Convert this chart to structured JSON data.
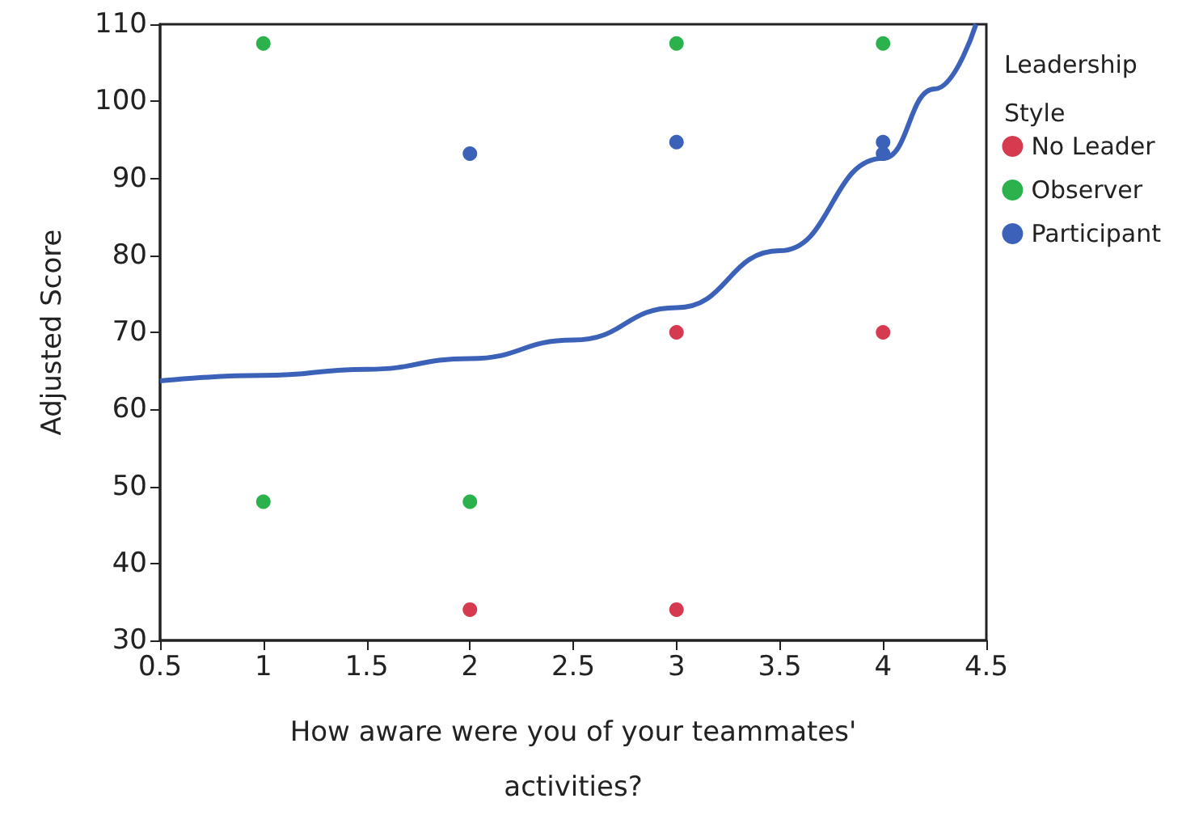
{
  "chart_data": {
    "type": "scatter",
    "xlabel": "How aware were you of your teammates' activities?",
    "ylabel": "Adjusted Score",
    "legend_title": "Leadership Style",
    "series": [
      {
        "name": "No Leader",
        "color": "#d63a4f",
        "x": [
          2,
          3,
          3,
          4
        ],
        "values": [
          34,
          34,
          70,
          70
        ]
      },
      {
        "name": "Observer",
        "color": "#2bb24c",
        "x": [
          1,
          1,
          2,
          3,
          4
        ],
        "values": [
          107.5,
          48,
          48,
          107.5,
          107.5
        ]
      },
      {
        "name": "Participant",
        "color": "#3b62b8",
        "x": [
          2,
          3,
          4,
          4
        ],
        "values": [
          93.2,
          94.7,
          94.7,
          93.2
        ]
      },
      {
        "type": "line",
        "marker": "none",
        "color": "#3b62b8",
        "x": [
          0.5,
          1,
          1.5,
          2,
          2.5,
          3,
          3.5,
          4,
          4.25,
          4.45
        ],
        "values": [
          63.7,
          64.4,
          65.2,
          66.6,
          69,
          73.2,
          80.6,
          92.6,
          101.6,
          110
        ]
      }
    ],
    "xlim": [
      0.5,
      4.5
    ],
    "xticks": [
      0.5,
      1,
      1.5,
      2,
      2.5,
      3,
      3.5,
      4,
      4.5
    ],
    "ylim": [
      30,
      110
    ],
    "yticks": [
      30,
      40,
      50,
      60,
      70,
      80,
      90,
      100,
      110
    ],
    "grid": false,
    "legend": "top right",
    "marker": "circle"
  }
}
